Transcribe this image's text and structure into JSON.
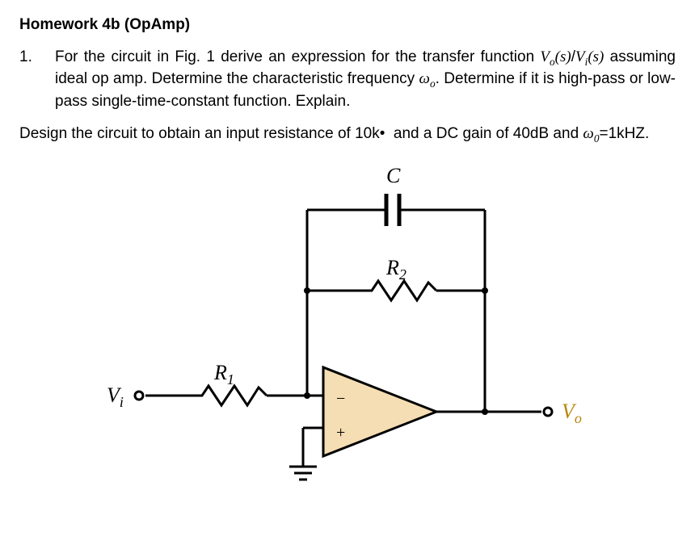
{
  "title": "Homework 4b (OpAmp)",
  "question_number": "1.",
  "question_body_html": "For the circuit in Fig. 1 derive an expression for the transfer function <span class='it'>V<span class='sub'>o</span>(s)</span>/<span class='it'>V<span class='sub'>i</span>(s)</span> assuming ideal op amp. Determine the characteristic frequency <span class='it'>ω<span class='sub'>o</span></span>. Determine if it is high-pass or low-pass single-time-constant function. Explain.",
  "design_text_html": "Design the circuit to obtain an input resistance of 10k•&nbsp;&nbsp;and a DC gain of 40dB and <span class='it'>ω<span class='sub'>0</span></span>=1kHZ.",
  "circuit": {
    "type": "opamp-inverting-with-parallel-RC-feedback",
    "stroke_width": 3,
    "wire_color": "#000000",
    "opamp_fill": "#f5deb3",
    "background": "#ffffff",
    "node_radius": 4,
    "terminal_radius": 5,
    "labels": {
      "input": {
        "text": "V",
        "sub": "i",
        "color": "#000000"
      },
      "output": {
        "text": "V",
        "sub": "o",
        "color": "#b8860b"
      },
      "R1": {
        "text": "R",
        "sub": "1"
      },
      "R2": {
        "text": "R",
        "sub": "2"
      },
      "C": {
        "text": "C"
      },
      "minus": "−",
      "plus": "+"
    }
  }
}
